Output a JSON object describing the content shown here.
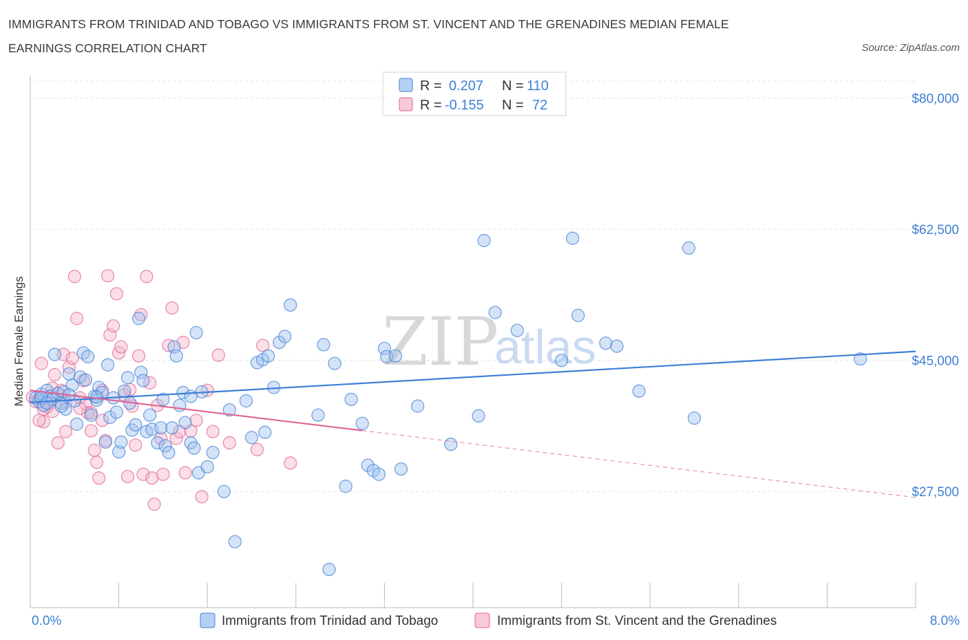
{
  "title": "IMMIGRANTS FROM TRINIDAD AND TOBAGO VS IMMIGRANTS FROM ST. VINCENT AND THE GRENADINES MEDIAN FEMALE EARNINGS CORRELATION CHART",
  "source": "Source: ZipAtlas.com",
  "watermark": {
    "zip": "ZIP",
    "atlas": "atlas"
  },
  "colors": {
    "blue": "#3d7fd6",
    "blue_fill": "#9fc2ee",
    "pink": "#e0628f",
    "pink_fill": "#f4b6cb"
  },
  "legend": {
    "r_label": "R =",
    "n_label": "N =",
    "rows": [
      {
        "r": "0.207",
        "n": "110"
      },
      {
        "r": "-0.155",
        "n": "72"
      }
    ]
  },
  "chart_data": {
    "type": "scatter",
    "ylabel": "Median Female Earnings",
    "xlim": [
      0,
      8
    ],
    "ylim": [
      12000,
      83000
    ],
    "x_tick_labels": [
      "0.0%",
      "8.0%"
    ],
    "y_ticks": [
      {
        "value": 80000,
        "label": "$80,000"
      },
      {
        "value": 62500,
        "label": "$62,500"
      },
      {
        "value": 45000,
        "label": "$45,000"
      },
      {
        "value": 27500,
        "label": "$27,500"
      }
    ],
    "series": [
      {
        "name": "Immigrants from Trinidad and Tobago",
        "trend": {
          "x": [
            0,
            8
          ],
          "y": [
            39400,
            46200
          ],
          "solid_to": 8
        },
        "points": [
          [
            0.05,
            40000
          ],
          [
            0.08,
            39500
          ],
          [
            0.1,
            40500
          ],
          [
            0.12,
            39000
          ],
          [
            0.15,
            41000
          ],
          [
            0.18,
            40200
          ],
          [
            0.2,
            39800
          ],
          [
            0.22,
            45800
          ],
          [
            0.25,
            40600
          ],
          [
            0.28,
            39300
          ],
          [
            0.3,
            40800
          ],
          [
            0.32,
            38500
          ],
          [
            0.35,
            43200
          ],
          [
            0.38,
            41700
          ],
          [
            0.4,
            39600
          ],
          [
            0.42,
            36500
          ],
          [
            0.45,
            42800
          ],
          [
            0.48,
            46000
          ],
          [
            0.5,
            42400
          ],
          [
            0.52,
            45500
          ],
          [
            0.55,
            37700
          ],
          [
            0.58,
            40200
          ],
          [
            0.6,
            39700
          ],
          [
            0.62,
            41400
          ],
          [
            0.65,
            40700
          ],
          [
            0.68,
            34100
          ],
          [
            0.7,
            44400
          ],
          [
            0.72,
            37400
          ],
          [
            0.75,
            40000
          ],
          [
            0.78,
            38100
          ],
          [
            0.8,
            32800
          ],
          [
            0.82,
            34100
          ],
          [
            0.85,
            40900
          ],
          [
            0.88,
            42700
          ],
          [
            0.9,
            39300
          ],
          [
            0.92,
            35700
          ],
          [
            0.95,
            36400
          ],
          [
            0.98,
            50600
          ],
          [
            1.0,
            43400
          ],
          [
            1.02,
            42300
          ],
          [
            1.05,
            35500
          ],
          [
            1.08,
            37700
          ],
          [
            1.1,
            35800
          ],
          [
            1.15,
            34000
          ],
          [
            1.18,
            36000
          ],
          [
            1.2,
            39800
          ],
          [
            1.22,
            33600
          ],
          [
            1.25,
            32700
          ],
          [
            1.28,
            36000
          ],
          [
            1.3,
            46800
          ],
          [
            1.32,
            45600
          ],
          [
            1.35,
            39000
          ],
          [
            1.38,
            40700
          ],
          [
            1.4,
            36700
          ],
          [
            1.45,
            34000
          ],
          [
            1.48,
            33300
          ],
          [
            1.5,
            48700
          ],
          [
            1.52,
            30000
          ],
          [
            1.55,
            40800
          ],
          [
            1.6,
            30800
          ],
          [
            1.65,
            32700
          ],
          [
            1.75,
            27500
          ],
          [
            1.8,
            38400
          ],
          [
            1.85,
            20800
          ],
          [
            1.95,
            39600
          ],
          [
            2.0,
            34700
          ],
          [
            2.05,
            44700
          ],
          [
            2.1,
            45100
          ],
          [
            2.12,
            35400
          ],
          [
            2.15,
            45600
          ],
          [
            2.2,
            41400
          ],
          [
            2.25,
            47400
          ],
          [
            2.3,
            48200
          ],
          [
            2.35,
            52400
          ],
          [
            2.6,
            37700
          ],
          [
            2.65,
            47100
          ],
          [
            2.75,
            44600
          ],
          [
            2.85,
            28200
          ],
          [
            2.9,
            39800
          ],
          [
            3.0,
            36600
          ],
          [
            3.05,
            31000
          ],
          [
            3.1,
            30300
          ],
          [
            3.15,
            29800
          ],
          [
            3.2,
            46600
          ],
          [
            3.22,
            45500
          ],
          [
            3.3,
            45600
          ],
          [
            3.35,
            30500
          ],
          [
            3.5,
            38900
          ],
          [
            3.8,
            33800
          ],
          [
            4.05,
            37600
          ],
          [
            4.1,
            61000
          ],
          [
            4.2,
            51400
          ],
          [
            4.4,
            49000
          ],
          [
            4.8,
            45000
          ],
          [
            4.9,
            61300
          ],
          [
            4.95,
            51000
          ],
          [
            5.2,
            47300
          ],
          [
            5.3,
            46900
          ],
          [
            5.5,
            40900
          ],
          [
            5.95,
            60000
          ],
          [
            6.0,
            37300
          ],
          [
            7.5,
            45200
          ],
          [
            2.7,
            17100
          ],
          [
            0.35,
            40400
          ],
          [
            0.6,
            40100
          ],
          [
            1.45,
            40200
          ],
          [
            0.1,
            40000
          ],
          [
            0.15,
            39300
          ],
          [
            0.28,
            38900
          ]
        ]
      },
      {
        "name": "Immigrants from St. Vincent and the Grenadines",
        "trend": {
          "x": [
            0,
            8
          ],
          "y": [
            41000,
            26700
          ],
          "solid_to": 3.0
        },
        "points": [
          [
            0.02,
            40100
          ],
          [
            0.05,
            39500
          ],
          [
            0.08,
            39800
          ],
          [
            0.1,
            44600
          ],
          [
            0.12,
            36800
          ],
          [
            0.15,
            38800
          ],
          [
            0.18,
            39300
          ],
          [
            0.2,
            38200
          ],
          [
            0.22,
            43100
          ],
          [
            0.25,
            34000
          ],
          [
            0.28,
            40300
          ],
          [
            0.3,
            45800
          ],
          [
            0.32,
            35500
          ],
          [
            0.35,
            44100
          ],
          [
            0.38,
            45300
          ],
          [
            0.4,
            56200
          ],
          [
            0.42,
            50600
          ],
          [
            0.45,
            40000
          ],
          [
            0.48,
            42300
          ],
          [
            0.5,
            39200
          ],
          [
            0.52,
            38000
          ],
          [
            0.55,
            35600
          ],
          [
            0.58,
            33000
          ],
          [
            0.6,
            31400
          ],
          [
            0.62,
            29300
          ],
          [
            0.65,
            37000
          ],
          [
            0.68,
            34300
          ],
          [
            0.7,
            56300
          ],
          [
            0.72,
            48400
          ],
          [
            0.75,
            49600
          ],
          [
            0.78,
            53900
          ],
          [
            0.8,
            46000
          ],
          [
            0.82,
            46800
          ],
          [
            0.85,
            40400
          ],
          [
            0.88,
            29500
          ],
          [
            0.9,
            41100
          ],
          [
            0.92,
            38900
          ],
          [
            0.95,
            33700
          ],
          [
            0.98,
            45600
          ],
          [
            1.0,
            51100
          ],
          [
            1.02,
            29800
          ],
          [
            1.05,
            56200
          ],
          [
            1.08,
            42000
          ],
          [
            1.1,
            29300
          ],
          [
            1.12,
            25800
          ],
          [
            1.15,
            39000
          ],
          [
            1.18,
            34600
          ],
          [
            1.2,
            29800
          ],
          [
            1.25,
            47000
          ],
          [
            1.28,
            52000
          ],
          [
            1.32,
            34600
          ],
          [
            1.35,
            35500
          ],
          [
            1.38,
            47400
          ],
          [
            1.4,
            30000
          ],
          [
            1.45,
            35600
          ],
          [
            1.5,
            37000
          ],
          [
            1.55,
            26800
          ],
          [
            1.6,
            41000
          ],
          [
            1.65,
            35500
          ],
          [
            1.7,
            45700
          ],
          [
            1.8,
            34000
          ],
          [
            2.05,
            33100
          ],
          [
            2.1,
            47000
          ],
          [
            2.35,
            31300
          ],
          [
            0.12,
            38500
          ],
          [
            0.2,
            41300
          ],
          [
            0.45,
            38600
          ],
          [
            0.55,
            38000
          ],
          [
            0.65,
            41000
          ],
          [
            0.28,
            41000
          ],
          [
            0.08,
            37000
          ],
          [
            0.32,
            39400
          ]
        ]
      }
    ]
  },
  "bottom_legend": [
    "Immigrants from Trinidad and Tobago",
    "Immigrants from St. Vincent and the Grenadines"
  ]
}
